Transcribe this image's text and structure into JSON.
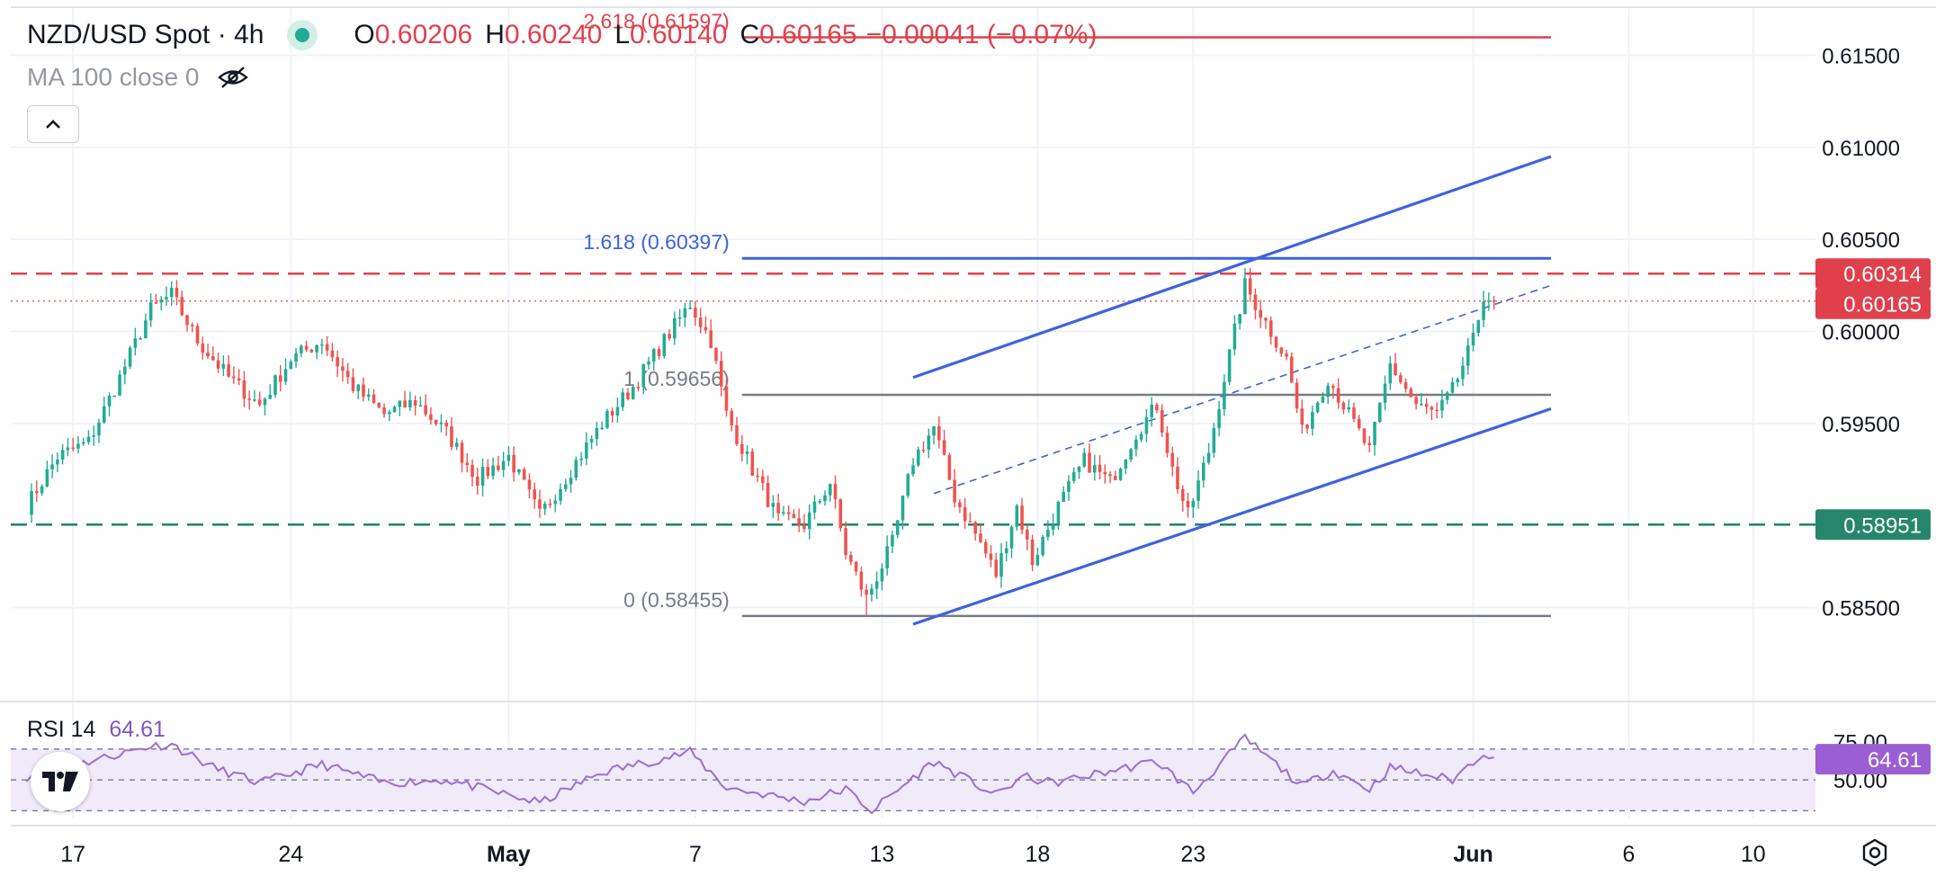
{
  "header": {
    "symbol": "NZD/USD Spot · 4h",
    "open_label": "O",
    "open": "0.60206",
    "high_label": "H",
    "high": "0.60240",
    "low_label": "L",
    "low": "0.60140",
    "close_label": "C",
    "close": "0.60165",
    "change": "−0.00041 (−0.07%)",
    "status": "market-open"
  },
  "ma_indicator": {
    "label": "MA 100 close 0",
    "icon": "eye-crossed-icon"
  },
  "collapse_button": {
    "icon": "chevron-up-icon"
  },
  "rsi_indicator": {
    "label": "RSI 14",
    "value": "64.61"
  },
  "colors": {
    "up": "#22ab94",
    "down": "#ef5350",
    "trend": "#3d63dd",
    "horizontal": "#787b86",
    "resistance": "#e0404c",
    "support": "#26866b",
    "rsi": "#9c6fd0",
    "rsi_band": "#f0eaf9"
  },
  "chart_data": [
    {
      "type": "candlestick",
      "title": "NZD/USD Spot · 4h",
      "y_range": [
        0.58,
        0.618
      ],
      "y_ticks": [
        "0.61500",
        "0.61000",
        "0.60500",
        "0.60000",
        "0.59500",
        "0.58500"
      ],
      "y_tick_values": [
        0.615,
        0.61,
        0.605,
        0.6,
        0.595,
        0.585
      ],
      "x_range": [
        "2024-04-15",
        "2024-06-12"
      ],
      "x_ticks": [
        "17",
        "24",
        "May",
        "7",
        "13",
        "18",
        "23",
        "Jun",
        "6",
        "10"
      ],
      "x_tick_dates": [
        "2024-04-17",
        "2024-04-24",
        "2024-05-01",
        "2024-05-07",
        "2024-05-13",
        "2024-05-18",
        "2024-05-23",
        "2024-06-01",
        "2024-06-06",
        "2024-06-10"
      ],
      "anchor_points": [
        {
          "date": "2024-04-15T12:00",
          "price": 0.5905
        },
        {
          "date": "2024-04-16T12:00",
          "price": 0.5932
        },
        {
          "date": "2024-04-17T12:00",
          "price": 0.594
        },
        {
          "date": "2024-04-18T12:00",
          "price": 0.5975
        },
        {
          "date": "2024-04-19T12:00",
          "price": 0.6012
        },
        {
          "date": "2024-04-20T04:00",
          "price": 0.602
        },
        {
          "date": "2024-04-21T00:00",
          "price": 0.5995
        },
        {
          "date": "2024-04-22T00:00",
          "price": 0.5975
        },
        {
          "date": "2024-04-23T00:00",
          "price": 0.596
        },
        {
          "date": "2024-04-24T00:00",
          "price": 0.5985
        },
        {
          "date": "2024-04-25T00:00",
          "price": 0.5995
        },
        {
          "date": "2024-04-26T00:00",
          "price": 0.597
        },
        {
          "date": "2024-04-27T00:00",
          "price": 0.5955
        },
        {
          "date": "2024-04-28T00:00",
          "price": 0.5962
        },
        {
          "date": "2024-04-29T00:00",
          "price": 0.5945
        },
        {
          "date": "2024-04-30T00:00",
          "price": 0.592
        },
        {
          "date": "2024-05-01T00:00",
          "price": 0.5932
        },
        {
          "date": "2024-05-02T00:00",
          "price": 0.59
        },
        {
          "date": "2024-05-03T00:00",
          "price": 0.5925
        },
        {
          "date": "2024-05-04T00:00",
          "price": 0.595
        },
        {
          "date": "2024-05-05T00:00",
          "price": 0.597
        },
        {
          "date": "2024-05-06T00:00",
          "price": 0.5995
        },
        {
          "date": "2024-05-06T20:00",
          "price": 0.6015
        },
        {
          "date": "2024-05-07T12:00",
          "price": 0.5995
        },
        {
          "date": "2024-05-08T00:00",
          "price": 0.5955
        },
        {
          "date": "2024-05-08T20:00",
          "price": 0.5925
        },
        {
          "date": "2024-05-09T16:00",
          "price": 0.5898
        },
        {
          "date": "2024-05-10T12:00",
          "price": 0.5895
        },
        {
          "date": "2024-05-11T08:00",
          "price": 0.5918
        },
        {
          "date": "2024-05-11T20:00",
          "price": 0.588
        },
        {
          "date": "2024-05-12T12:00",
          "price": 0.5855
        },
        {
          "date": "2024-05-13T08:00",
          "price": 0.5885
        },
        {
          "date": "2024-05-14T00:00",
          "price": 0.593
        },
        {
          "date": "2024-05-14T16:00",
          "price": 0.5948
        },
        {
          "date": "2024-05-15T08:00",
          "price": 0.591
        },
        {
          "date": "2024-05-16T04:00",
          "price": 0.5885
        },
        {
          "date": "2024-05-16T16:00",
          "price": 0.5868
        },
        {
          "date": "2024-05-17T08:00",
          "price": 0.5905
        },
        {
          "date": "2024-05-17T20:00",
          "price": 0.5875
        },
        {
          "date": "2024-05-18T16:00",
          "price": 0.5905
        },
        {
          "date": "2024-05-19T12:00",
          "price": 0.593
        },
        {
          "date": "2024-05-20T08:00",
          "price": 0.5918
        },
        {
          "date": "2024-05-21T04:00",
          "price": 0.5945
        },
        {
          "date": "2024-05-21T20:00",
          "price": 0.596
        },
        {
          "date": "2024-05-22T08:00",
          "price": 0.5925
        },
        {
          "date": "2024-05-22T20:00",
          "price": 0.59
        },
        {
          "date": "2024-05-23T12:00",
          "price": 0.5935
        },
        {
          "date": "2024-05-24T00:00",
          "price": 0.5975
        },
        {
          "date": "2024-05-24T16:00",
          "price": 0.6025
        },
        {
          "date": "2024-05-25T08:00",
          "price": 0.6005
        },
        {
          "date": "2024-05-26T00:00",
          "price": 0.5985
        },
        {
          "date": "2024-05-26T12:00",
          "price": 0.5945
        },
        {
          "date": "2024-05-27T08:00",
          "price": 0.5975
        },
        {
          "date": "2024-05-28T00:00",
          "price": 0.5955
        },
        {
          "date": "2024-05-28T16:00",
          "price": 0.5935
        },
        {
          "date": "2024-05-29T08:00",
          "price": 0.5982
        },
        {
          "date": "2024-05-30T04:00",
          "price": 0.596
        },
        {
          "date": "2024-05-30T20:00",
          "price": 0.5955
        },
        {
          "date": "2024-05-31T08:00",
          "price": 0.5968
        },
        {
          "date": "2024-06-01T00:00",
          "price": 0.5995
        },
        {
          "date": "2024-06-01T08:00",
          "price": 0.602
        },
        {
          "date": "2024-06-01T16:00",
          "price": 0.60165
        }
      ],
      "lows": [
        {
          "date": "2024-05-12T12:00",
          "low": 0.58455
        }
      ],
      "last_price": {
        "value": 0.60165,
        "label": "0.60165"
      },
      "horizontal_lines": [
        {
          "value": 0.60314,
          "label": "0.60314",
          "style": "dashed",
          "color": "#e0404c"
        },
        {
          "value": 0.58951,
          "label": "0.58951",
          "style": "dashed",
          "color": "#26866b"
        }
      ],
      "fibonacci": [
        {
          "level": "2.618",
          "value": 0.61597,
          "label": "2.618 (0.61597)",
          "color": "#e0404c"
        },
        {
          "level": "1.618",
          "value": 0.60397,
          "label": "1.618 (0.60397)",
          "color": "#3d63dd"
        },
        {
          "level": "1",
          "value": 0.59656,
          "label": "1 (0.59656)",
          "color": "#787b86"
        },
        {
          "level": "0",
          "value": 0.58455,
          "label": "0 (0.58455)",
          "color": "#787b86"
        }
      ],
      "trend_channel": {
        "upper": [
          {
            "date": "2024-05-14T00:00",
            "price": 0.5975
          },
          {
            "date": "2024-06-03T12:00",
            "price": 0.6095
          }
        ],
        "middle": [
          {
            "date": "2024-05-14T16:00",
            "price": 0.5912
          },
          {
            "date": "2024-06-03T12:00",
            "price": 0.6025
          }
        ],
        "lower": [
          {
            "date": "2024-05-14T00:00",
            "price": 0.5841
          },
          {
            "date": "2024-06-03T12:00",
            "price": 0.5958
          }
        ]
      }
    },
    {
      "type": "line",
      "title": "RSI 14",
      "y_range": [
        25,
        95
      ],
      "y_ticks": [
        "75.00",
        "50.00"
      ],
      "y_tick_values": [
        75,
        50
      ],
      "bands": [
        70,
        50,
        30
      ],
      "last_value": {
        "value": 64.61,
        "label": "64.61"
      },
      "anchor_points": [
        {
          "date": "2024-04-15T12:00",
          "value": 52
        },
        {
          "date": "2024-04-17T12:00",
          "value": 62
        },
        {
          "date": "2024-04-19T12:00",
          "value": 72
        },
        {
          "date": "2024-04-20T04:00",
          "value": 73
        },
        {
          "date": "2024-04-21T12:00",
          "value": 58
        },
        {
          "date": "2024-04-23T00:00",
          "value": 48
        },
        {
          "date": "2024-04-25T00:00",
          "value": 60
        },
        {
          "date": "2024-04-27T00:00",
          "value": 48
        },
        {
          "date": "2024-04-29T00:00",
          "value": 50
        },
        {
          "date": "2024-05-01T00:00",
          "value": 40
        },
        {
          "date": "2024-05-02T00:00",
          "value": 35
        },
        {
          "date": "2024-05-04T00:00",
          "value": 55
        },
        {
          "date": "2024-05-06T20:00",
          "value": 68
        },
        {
          "date": "2024-05-08T00:00",
          "value": 45
        },
        {
          "date": "2024-05-10T12:00",
          "value": 36
        },
        {
          "date": "2024-05-11T20:00",
          "value": 44
        },
        {
          "date": "2024-05-12T16:00",
          "value": 30
        },
        {
          "date": "2024-05-14T16:00",
          "value": 62
        },
        {
          "date": "2024-05-16T16:00",
          "value": 40
        },
        {
          "date": "2024-05-17T12:00",
          "value": 52
        },
        {
          "date": "2024-05-18T12:00",
          "value": 48
        },
        {
          "date": "2024-05-21T20:00",
          "value": 62
        },
        {
          "date": "2024-05-23T00:00",
          "value": 42
        },
        {
          "date": "2024-05-24T16:00",
          "value": 77
        },
        {
          "date": "2024-05-26T12:00",
          "value": 46
        },
        {
          "date": "2024-05-27T12:00",
          "value": 56
        },
        {
          "date": "2024-05-28T16:00",
          "value": 44
        },
        {
          "date": "2024-05-29T08:00",
          "value": 58
        },
        {
          "date": "2024-05-30T20:00",
          "value": 52
        },
        {
          "date": "2024-05-31T08:00",
          "value": 50
        },
        {
          "date": "2024-06-01T08:00",
          "value": 68
        },
        {
          "date": "2024-06-01T16:00",
          "value": 64.61
        }
      ]
    }
  ]
}
